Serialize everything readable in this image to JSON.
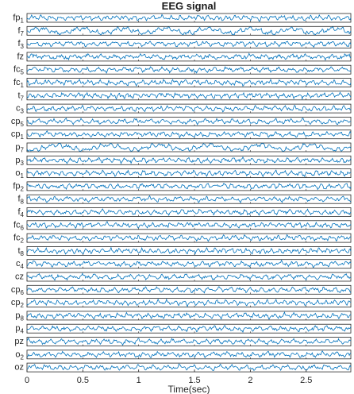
{
  "chart_data": {
    "type": "line",
    "title": "EEG signal",
    "xlabel": "Time(sec)",
    "ylabel": "",
    "xlim": [
      0,
      2.9
    ],
    "xticks": [
      0,
      0.5,
      1,
      1.5,
      2,
      2.5
    ],
    "xtick_labels": [
      "0",
      "0.5",
      "1",
      "1.5",
      "2",
      "2.5"
    ],
    "line_color": "#0072BD",
    "grid": false,
    "series": [
      {
        "name": "fp",
        "sub": "1"
      },
      {
        "name": "f",
        "sub": "7"
      },
      {
        "name": "f",
        "sub": "3"
      },
      {
        "name": "fz",
        "sub": ""
      },
      {
        "name": "fc",
        "sub": "5"
      },
      {
        "name": "fc",
        "sub": "1"
      },
      {
        "name": "t",
        "sub": "7"
      },
      {
        "name": "c",
        "sub": "3"
      },
      {
        "name": "cp",
        "sub": "5"
      },
      {
        "name": "cp",
        "sub": "1"
      },
      {
        "name": "p",
        "sub": "7"
      },
      {
        "name": "p",
        "sub": "3"
      },
      {
        "name": "o",
        "sub": "1"
      },
      {
        "name": "fp",
        "sub": "2"
      },
      {
        "name": "f",
        "sub": "8"
      },
      {
        "name": "f",
        "sub": "4"
      },
      {
        "name": "fc",
        "sub": "6"
      },
      {
        "name": "fc",
        "sub": "2"
      },
      {
        "name": "t",
        "sub": "8"
      },
      {
        "name": "c",
        "sub": "4"
      },
      {
        "name": "cz",
        "sub": ""
      },
      {
        "name": "cp",
        "sub": "6"
      },
      {
        "name": "cp",
        "sub": "2"
      },
      {
        "name": "p",
        "sub": "8"
      },
      {
        "name": "p",
        "sub": "4"
      },
      {
        "name": "pz",
        "sub": ""
      },
      {
        "name": "o",
        "sub": "2"
      },
      {
        "name": "oz",
        "sub": ""
      }
    ]
  }
}
